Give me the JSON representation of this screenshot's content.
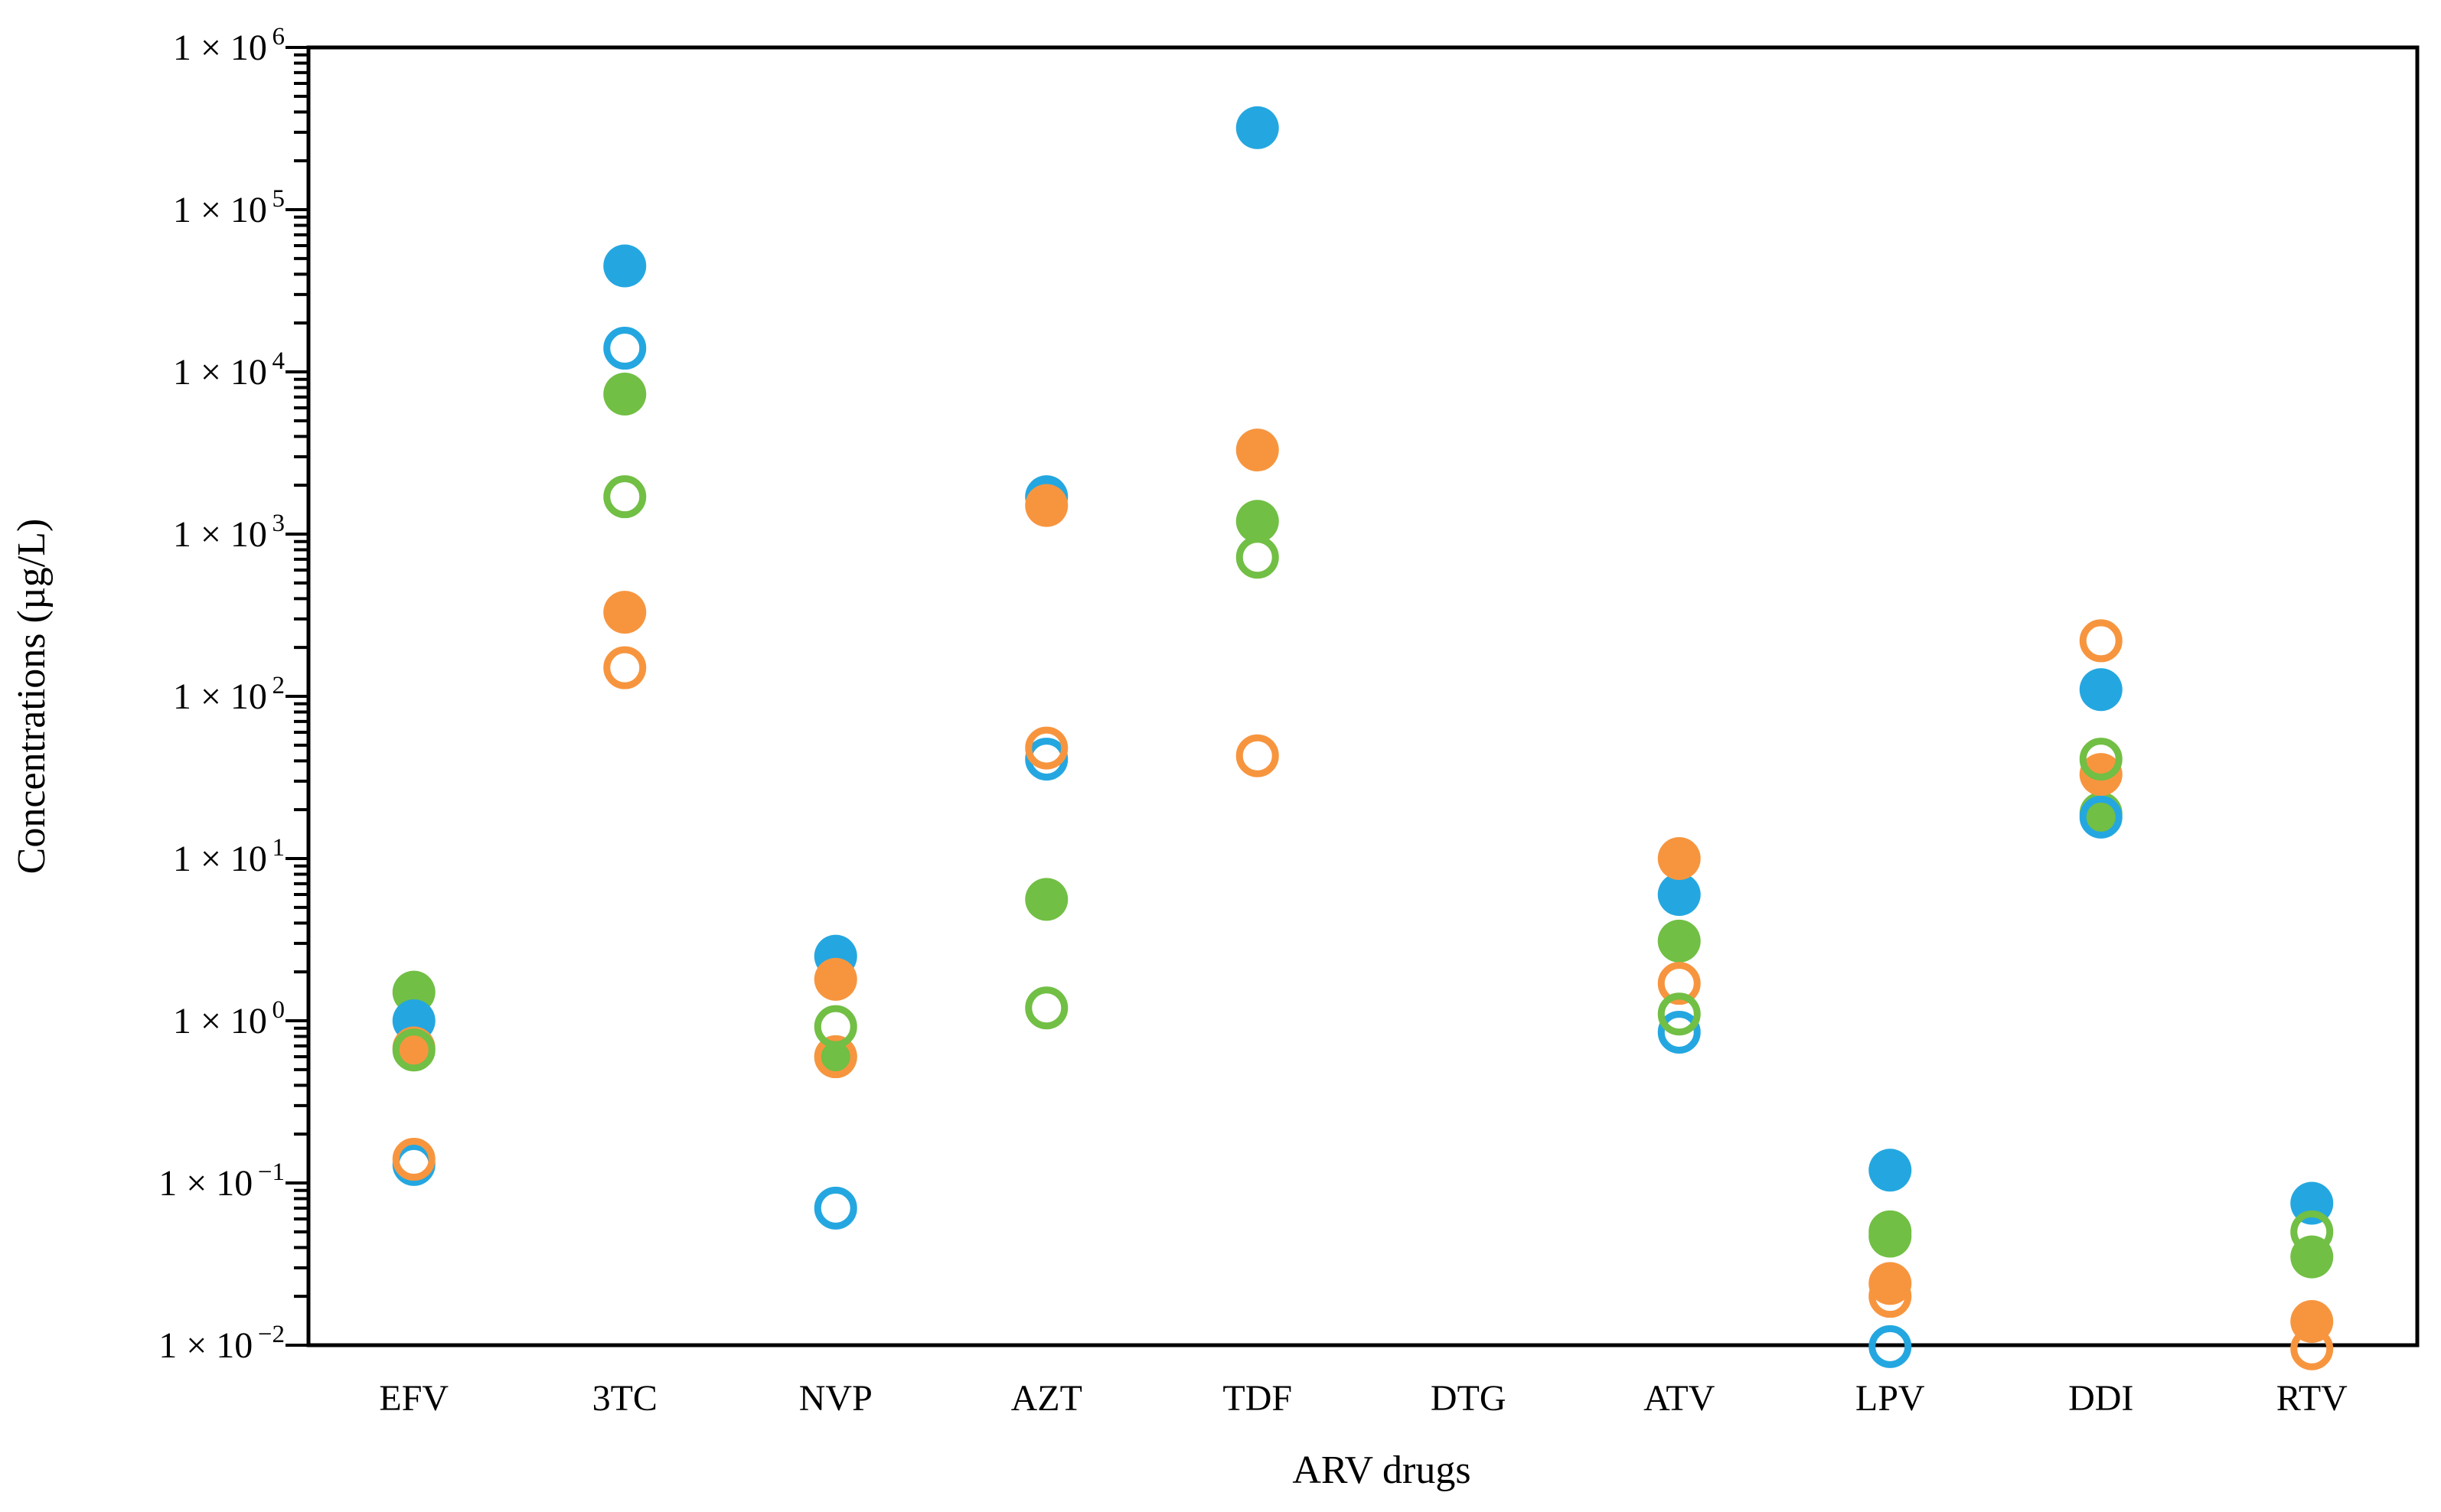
{
  "chart_data": {
    "type": "scatter",
    "title": "",
    "xlabel": "ARV drugs",
    "ylabel": "Concentrations (µg/L)",
    "y_scale": "log10",
    "ylim": [
      0.01,
      1000000
    ],
    "grid": false,
    "legend": "none",
    "categories": [
      "EFV",
      "3TC",
      "NVP",
      "AZT",
      "TDF",
      "DTG",
      "ATV",
      "LPV",
      "DDI",
      "RTV"
    ],
    "y_tick_labels": [
      {
        "base": "1 × 10",
        "exponent": "6"
      },
      {
        "base": "1 × 10",
        "exponent": "5"
      },
      {
        "base": "1 × 10",
        "exponent": "4"
      },
      {
        "base": "1 × 10",
        "exponent": "3"
      },
      {
        "base": "1 × 10",
        "exponent": "2"
      },
      {
        "base": "1 × 10",
        "exponent": "1"
      },
      {
        "base": "1 × 10",
        "exponent": "0"
      },
      {
        "base": "1 × 10",
        "exponent": "−1"
      },
      {
        "base": "1 × 10",
        "exponent": "−2"
      }
    ],
    "colors": {
      "blue": "#24A7E0",
      "orange": "#F7953F",
      "green": "#71BF44"
    },
    "marker": {
      "filled_radius": 28,
      "open_radius": 23.5,
      "open_stroke_width": 9
    },
    "series": [
      {
        "name": "green-filled",
        "color": "green",
        "style": "filled",
        "values": [
          1.5,
          7300,
          0.6,
          5.6,
          1200,
          null,
          3.1,
          0.047,
          19,
          0.035
        ]
      },
      {
        "name": "blue-filled",
        "color": "blue",
        "style": "filled",
        "values": [
          1.0,
          45000,
          2.5,
          1700,
          320000,
          null,
          6,
          0.12,
          110,
          0.075
        ]
      },
      {
        "name": "orange-filled",
        "color": "orange",
        "style": "filled",
        "values": [
          0.68,
          330,
          1.8,
          1500,
          3300,
          null,
          10,
          0.024,
          33,
          0.014
        ]
      },
      {
        "name": "blue-open",
        "color": "blue",
        "style": "open",
        "values": [
          0.13,
          14000,
          0.07,
          41,
          null,
          null,
          0.85,
          0.0098,
          18,
          null
        ]
      },
      {
        "name": "orange-open",
        "color": "orange",
        "style": "open",
        "values": [
          0.14,
          150,
          0.6,
          48,
          43,
          null,
          1.7,
          0.02,
          220,
          0.0095
        ]
      },
      {
        "name": "green-open",
        "color": "green",
        "style": "open",
        "values": [
          0.66,
          1700,
          0.92,
          1.2,
          720,
          null,
          1.1,
          0.05,
          41,
          0.05
        ]
      }
    ]
  }
}
